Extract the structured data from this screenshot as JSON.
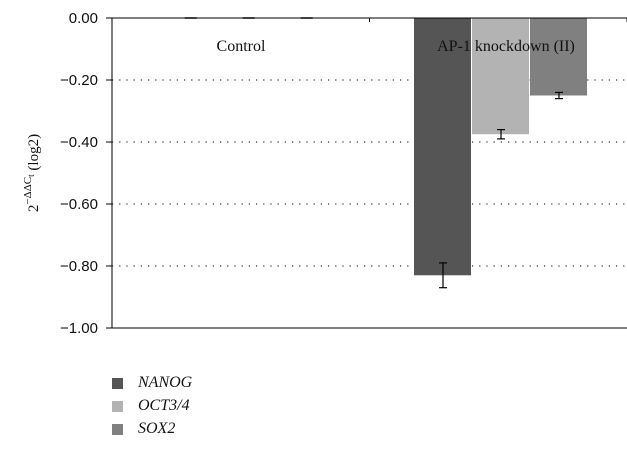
{
  "chart_data": {
    "type": "bar",
    "ylabel": "2^{−ΔΔC_t} (log2)",
    "ylim": [
      -1.0,
      0.0
    ],
    "yticks": [
      0.0,
      -0.2,
      -0.4,
      -0.6,
      -0.8,
      -1.0
    ],
    "ytick_labels": [
      "0.00",
      "−0.20",
      "−0.40",
      "−0.60",
      "−0.80",
      "−1.00"
    ],
    "grid": "dotted horizontal",
    "categories": [
      "Control",
      "AP-1 knockdown (II)"
    ],
    "series": [
      {
        "name": "NANOG",
        "color": "#555555",
        "values": [
          0.0,
          -0.83
        ],
        "errors": [
          0.0,
          0.04
        ]
      },
      {
        "name": "OCT3/4",
        "color": "#b3b3b3",
        "values": [
          0.0,
          -0.375
        ],
        "errors": [
          0.0,
          0.015
        ]
      },
      {
        "name": "SOX2",
        "color": "#808080",
        "values": [
          0.0,
          -0.25
        ],
        "errors": [
          0.0,
          0.01
        ]
      }
    ],
    "legend_position": "bottom-left"
  }
}
